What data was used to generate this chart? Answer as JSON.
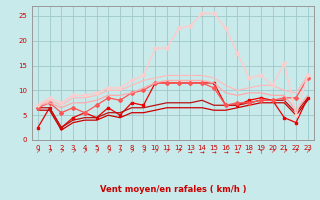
{
  "title": "",
  "xlabel": "Vent moyen/en rafales ( km/h )",
  "ylabel": "",
  "background_color": "#c8eaea",
  "grid_color": "#a0c8c8",
  "x": [
    0,
    1,
    2,
    3,
    4,
    5,
    6,
    7,
    8,
    9,
    10,
    11,
    12,
    13,
    14,
    15,
    16,
    17,
    18,
    19,
    20,
    21,
    22,
    23
  ],
  "series": [
    {
      "color": "#ee0000",
      "linewidth": 0.9,
      "marker": "s",
      "markersize": 2.0,
      "values": [
        2.5,
        6.5,
        2.5,
        4.5,
        5.5,
        4.5,
        6.5,
        5.0,
        7.5,
        7.0,
        11.5,
        11.5,
        11.5,
        11.5,
        11.5,
        11.5,
        7.0,
        7.0,
        8.0,
        8.5,
        8.0,
        4.5,
        3.5,
        8.5
      ]
    },
    {
      "color": "#cc0000",
      "linewidth": 0.9,
      "marker": null,
      "markersize": 0,
      "values": [
        6.0,
        6.0,
        2.0,
        3.5,
        4.0,
        4.0,
        5.0,
        4.5,
        5.5,
        5.5,
        6.0,
        6.5,
        6.5,
        6.5,
        6.5,
        6.0,
        6.0,
        6.5,
        7.0,
        7.5,
        7.5,
        7.5,
        5.0,
        8.0
      ]
    },
    {
      "color": "#bb1111",
      "linewidth": 0.9,
      "marker": null,
      "markersize": 0,
      "values": [
        6.5,
        6.5,
        2.5,
        4.0,
        4.5,
        4.5,
        5.5,
        5.5,
        6.5,
        6.5,
        7.0,
        7.5,
        7.5,
        7.5,
        8.0,
        7.0,
        7.0,
        7.0,
        7.5,
        8.0,
        8.0,
        8.0,
        5.5,
        8.5
      ]
    },
    {
      "color": "#ff5555",
      "linewidth": 0.9,
      "marker": "D",
      "markersize": 2.0,
      "values": [
        6.5,
        7.5,
        5.5,
        6.5,
        5.5,
        7.0,
        8.5,
        8.0,
        9.5,
        10.0,
        11.5,
        11.5,
        11.5,
        11.5,
        11.5,
        10.5,
        7.0,
        7.5,
        7.5,
        8.0,
        8.0,
        8.5,
        8.5,
        12.5
      ]
    },
    {
      "color": "#ffaaaa",
      "linewidth": 0.9,
      "marker": null,
      "markersize": 0,
      "values": [
        7.0,
        7.5,
        6.5,
        7.5,
        7.5,
        8.0,
        9.0,
        9.0,
        9.5,
        10.5,
        11.5,
        12.0,
        12.0,
        12.0,
        12.0,
        11.5,
        9.5,
        9.0,
        9.5,
        9.5,
        9.0,
        9.0,
        6.0,
        9.0
      ]
    },
    {
      "color": "#ffbbbb",
      "linewidth": 0.9,
      "marker": null,
      "markersize": 0,
      "values": [
        7.0,
        8.0,
        7.0,
        8.5,
        8.5,
        9.0,
        10.0,
        10.0,
        11.0,
        12.0,
        12.5,
        13.0,
        13.0,
        13.0,
        13.0,
        12.5,
        11.0,
        10.0,
        10.5,
        11.0,
        11.0,
        10.0,
        9.5,
        13.0
      ]
    },
    {
      "color": "#ffcccc",
      "linewidth": 1.1,
      "marker": "D",
      "markersize": 1.8,
      "values": [
        7.0,
        8.5,
        7.5,
        9.0,
        9.0,
        9.5,
        10.5,
        10.5,
        12.0,
        13.0,
        18.5,
        18.5,
        22.5,
        23.0,
        25.5,
        25.5,
        22.5,
        17.5,
        12.5,
        13.0,
        11.0,
        15.5,
        5.0,
        13.0
      ]
    }
  ],
  "arrows": [
    "NE",
    "NE",
    "NE",
    "NE",
    "NE",
    "NE",
    "NE",
    "NE",
    "NE",
    "NE",
    "NE",
    "NE",
    "NE",
    "E",
    "E",
    "E",
    "E",
    "E",
    "E",
    "N",
    "NE",
    "NE",
    "NE",
    "NE"
  ],
  "ylim": [
    0,
    27
  ],
  "xlim": [
    -0.5,
    23.5
  ],
  "yticks": [
    0,
    5,
    10,
    15,
    20,
    25
  ],
  "xticks": [
    0,
    1,
    2,
    3,
    4,
    5,
    6,
    7,
    8,
    9,
    10,
    11,
    12,
    13,
    14,
    15,
    16,
    17,
    18,
    19,
    20,
    21,
    22,
    23
  ],
  "xlabel_color": "#cc0000",
  "tick_color": "#cc0000",
  "spine_color": "#999999",
  "arrow_chars": {
    "NE": "↗",
    "E": "→",
    "N": "↑",
    "SE": "↘",
    "S": "↓",
    "SW": "↙",
    "W": "←",
    "NW": "↖"
  }
}
